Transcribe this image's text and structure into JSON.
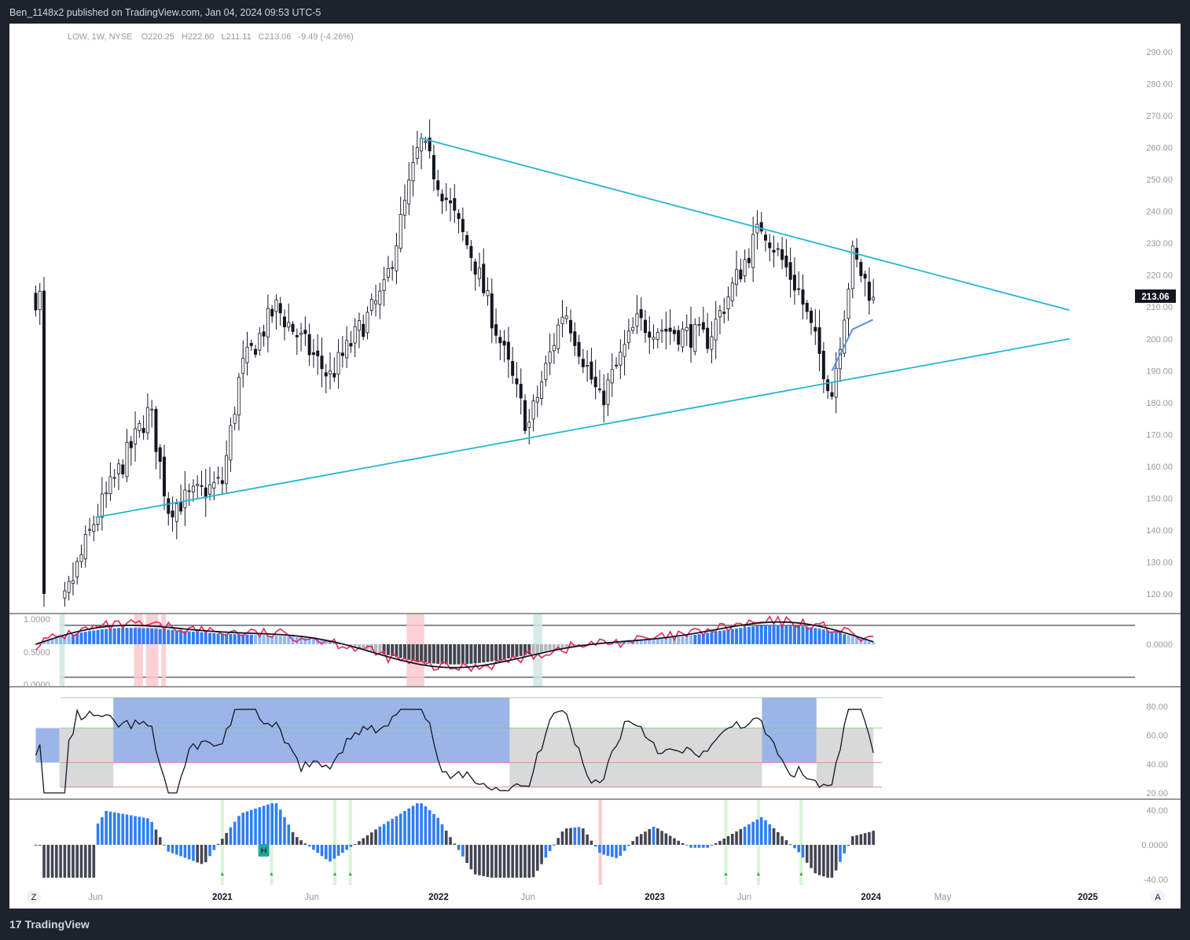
{
  "header": {
    "publisher_line": "Ben_1148x2 published on TradingView.com, Jan 04, 2024 09:53 UTC-5"
  },
  "footer": {
    "brand": "TradingView",
    "brand_logo": "17"
  },
  "legend": {
    "symbol": "LOW, 1W, NYSE",
    "open_label": "O",
    "open": "220.25",
    "high_label": "H",
    "high": "222.60",
    "low_label": "L",
    "low": "211.11",
    "close_label": "C",
    "close": "213.06",
    "change": "-9.49 (-4.26%)"
  },
  "price_badge": "213.06",
  "time_buttons": {
    "left": "Z",
    "right": "A"
  },
  "colors": {
    "trendline": "#22b5d6",
    "up_body": "#ffffff",
    "down_body": "#131722",
    "ma_line": "#5b8ee6",
    "rsi_fill_blue": "#9bb5e8",
    "rsi_fill_gray": "#d9d9d9",
    "macd_pos": "#2f7df6",
    "macd_neg": "#434651",
    "signal_pink": "#e9265c",
    "axis_text": "#9598a1"
  },
  "chart_data": [
    {
      "type": "candlestick",
      "title": "LOW, 1W, NYSE",
      "ylim": [
        113,
        295
      ],
      "y_ticks": [
        "290.00",
        "280.00",
        "270.00",
        "260.00",
        "250.00",
        "240.00",
        "230.00",
        "220.00",
        "210.00",
        "200.00",
        "190.00",
        "180.00",
        "170.00",
        "160.00",
        "150.00",
        "140.00",
        "130.00",
        "120.00"
      ],
      "x_ticks": [
        "Jun",
        "2021",
        "Jun",
        "2022",
        "Jun",
        "2023",
        "Jun",
        "2024",
        "May",
        "2025"
      ],
      "key_points": [
        {
          "date": "2020-03",
          "price": 122
        },
        {
          "date": "2020-03-20",
          "price": 107
        },
        {
          "date": "2020-06",
          "price": 144
        },
        {
          "date": "2020-09",
          "price": 178
        },
        {
          "date": "2020-10",
          "price": 147
        },
        {
          "date": "2021-01",
          "price": 155
        },
        {
          "date": "2021-02",
          "price": 190
        },
        {
          "date": "2021-04",
          "price": 210
        },
        {
          "date": "2021-07",
          "price": 188
        },
        {
          "date": "2021-10",
          "price": 215
        },
        {
          "date": "2021-12",
          "price": 262
        },
        {
          "date": "2022-03",
          "price": 225
        },
        {
          "date": "2022-06",
          "price": 172
        },
        {
          "date": "2022-08",
          "price": 210
        },
        {
          "date": "2022-10",
          "price": 180
        },
        {
          "date": "2022-12",
          "price": 205
        },
        {
          "date": "2023-04",
          "price": 200
        },
        {
          "date": "2023-07",
          "price": 236
        },
        {
          "date": "2023-09",
          "price": 215
        },
        {
          "date": "2023-10-27",
          "price": 183
        },
        {
          "date": "2023-12",
          "price": 226
        },
        {
          "date": "2024-01-04",
          "price": 213.06
        }
      ],
      "trendlines": [
        {
          "name": "upper",
          "from": {
            "date": "2021-12",
            "price": 263
          },
          "to": {
            "date": "2024-12",
            "price": 209
          }
        },
        {
          "name": "lower",
          "from": {
            "date": "2020-06",
            "price": 144
          },
          "to": {
            "date": "2024-12",
            "price": 200
          }
        }
      ],
      "moving_average": [
        {
          "date": "2023-10-27",
          "price": 190
        },
        {
          "date": "2023-12",
          "price": 203
        },
        {
          "date": "2024-01-04",
          "price": 206
        }
      ]
    },
    {
      "type": "line",
      "name": "oscillator panel 1",
      "y_ticks_left": [
        "1.0000",
        "0.5000",
        "0.0000"
      ],
      "y_ticks_right": [
        "0.0000"
      ]
    },
    {
      "type": "line",
      "name": "oscillator panel 2",
      "y_ticks": [
        "80.00",
        "60.00",
        "40.00",
        "20.00"
      ],
      "upper_band": 65,
      "lower_band": 41,
      "marker_levels": [
        86,
        24
      ]
    },
    {
      "type": "bar",
      "name": "oscillator panel 3",
      "y_ticks": [
        "40.00",
        "0.0000",
        "-40.00"
      ],
      "marker_label": "H"
    }
  ]
}
